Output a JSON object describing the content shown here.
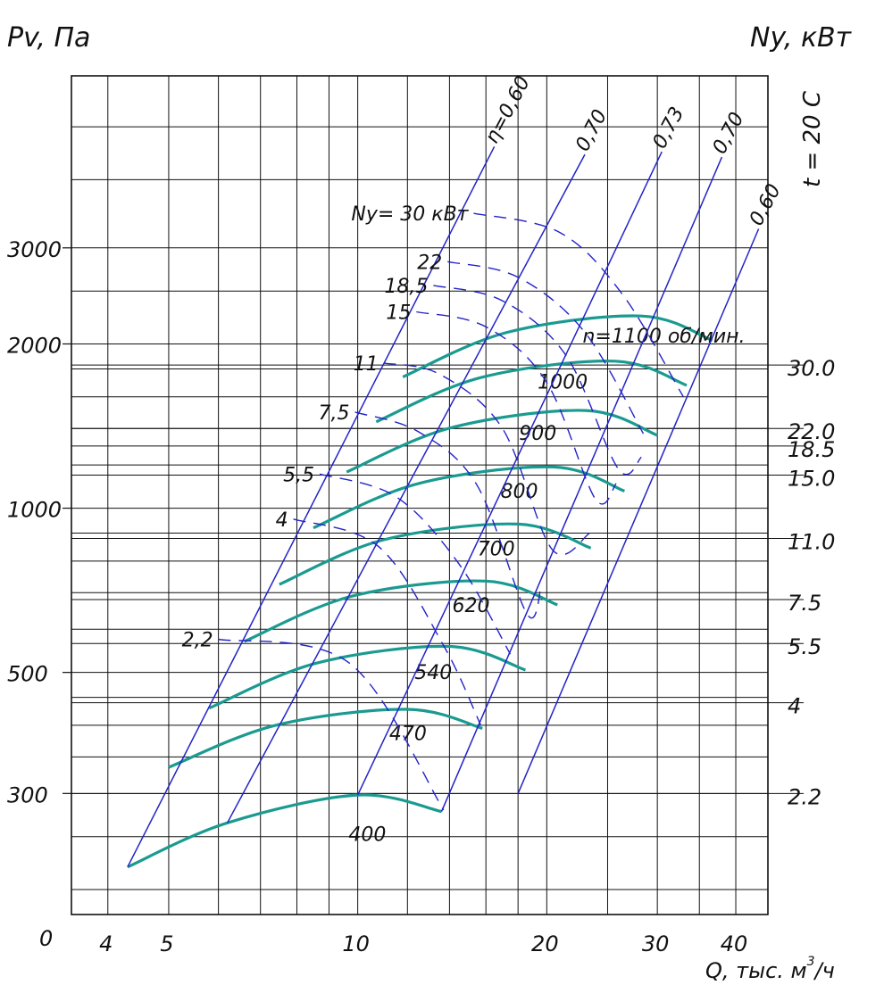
{
  "labels": {
    "y_left_title": "Pv, Па",
    "y_right_title": "Ny, кВт",
    "temperature": "t = 20 С",
    "x_title": "Q, тыс. м³/ч",
    "x_title_main": "Q, тыс. м",
    "x_title_sup": "3",
    "x_title_tail": "/ч",
    "origin": "0",
    "speed_prefix_note": "n=1100 об/мин.",
    "power_prefix_note": "Ny= 30 кВт"
  },
  "colors": {
    "grid": "#111111",
    "efficiency_lines": "#2323c8",
    "power_lines": "#2323c8",
    "speed_curves": "#1a9a90"
  },
  "chart_data": {
    "type": "line",
    "x_scale": "log",
    "y_scale": "log",
    "x_unit": "тыс. м³/ч",
    "y_unit": "Па",
    "xlim": [
      3.5,
      45
    ],
    "ylim": [
      180,
      6200
    ],
    "x_ticks": [
      "4",
      "5",
      "10",
      "20",
      "30",
      "40"
    ],
    "y_left_ticks": [
      "300",
      "500",
      "1000",
      "2000",
      "3000"
    ],
    "y_right_power_ticks": [
      {
        "label": "30.0",
        "pv": 1830
      },
      {
        "label": "22.0",
        "pv": 1400
      },
      {
        "label": "18.5",
        "pv": 1300
      },
      {
        "label": "15.0",
        "pv": 1150
      },
      {
        "label": "11.0",
        "pv": 880
      },
      {
        "label": "7.5",
        "pv": 680
      },
      {
        "label": "5.5",
        "pv": 565
      },
      {
        "label": "4",
        "pv": 440
      },
      {
        "label": "2.2",
        "pv": 300
      }
    ],
    "speed_curves": [
      {
        "name": "400",
        "points": [
          [
            4.3,
            220
          ],
          [
            6.2,
            265
          ],
          [
            10,
            298
          ],
          [
            13.6,
            278
          ]
        ]
      },
      {
        "name": "470",
        "points": [
          [
            5.0,
            335
          ],
          [
            7.4,
            400
          ],
          [
            12.0,
            428
          ],
          [
            15.8,
            395
          ]
        ]
      },
      {
        "name": "540",
        "points": [
          [
            5.8,
            430
          ],
          [
            8.6,
            520
          ],
          [
            14.0,
            558
          ],
          [
            18.5,
            505
          ]
        ]
      },
      {
        "name": "620",
        "points": [
          [
            6.6,
            570
          ],
          [
            9.8,
            690
          ],
          [
            16.0,
            735
          ],
          [
            20.8,
            665
          ]
        ]
      },
      {
        "name": "700",
        "points": [
          [
            7.5,
            725
          ],
          [
            11.0,
            875
          ],
          [
            18.0,
            935
          ],
          [
            23.5,
            845
          ]
        ]
      },
      {
        "name": "800",
        "points": [
          [
            8.5,
            920
          ],
          [
            12.5,
            1110
          ],
          [
            20.5,
            1190
          ],
          [
            26.6,
            1075
          ]
        ]
      },
      {
        "name": "900",
        "points": [
          [
            9.6,
            1165
          ],
          [
            14.1,
            1405
          ],
          [
            23.1,
            1510
          ],
          [
            30.0,
            1360
          ]
        ]
      },
      {
        "name": "1000",
        "points": [
          [
            10.7,
            1440
          ],
          [
            15.7,
            1735
          ],
          [
            25.7,
            1860
          ],
          [
            33.4,
            1680
          ]
        ]
      },
      {
        "name": "1100",
        "points": [
          [
            11.8,
            1740
          ],
          [
            17.3,
            2100
          ],
          [
            28.3,
            2250
          ],
          [
            36.7,
            2030
          ]
        ]
      }
    ],
    "efficiency_lines": [
      {
        "name": "η=0,60",
        "label": "η=0,60",
        "points": [
          [
            4.3,
            220
          ],
          [
            16.5,
            4600
          ]
        ]
      },
      {
        "name": "0,70",
        "label": "0,70",
        "points": [
          [
            6.2,
            265
          ],
          [
            23.0,
            4450
          ]
        ]
      },
      {
        "name": "0,73",
        "label": "0,73",
        "points": [
          [
            10,
            298
          ],
          [
            30.5,
            4500
          ]
        ]
      },
      {
        "name": "0,70",
        "label": "0,70",
        "points": [
          [
            13.6,
            278
          ],
          [
            38.0,
            4400
          ]
        ]
      },
      {
        "name": "0,60",
        "label": "0,60",
        "points": [
          [
            18.0,
            300
          ],
          [
            43.5,
            3250
          ]
        ]
      }
    ],
    "power_lines": [
      {
        "label": "2,2",
        "points": [
          [
            6.0,
            575
          ],
          [
            9.7,
            520
          ],
          [
            13.7,
            280
          ]
        ]
      },
      {
        "label": "4",
        "points": [
          [
            7.9,
            955
          ],
          [
            10.8,
            850
          ],
          [
            13.7,
            560
          ],
          [
            15.7,
            400
          ]
        ]
      },
      {
        "label": "5,5",
        "points": [
          [
            8.7,
            1155
          ],
          [
            11.5,
            1050
          ],
          [
            14.5,
            790
          ],
          [
            17.5,
            540
          ]
        ]
      },
      {
        "label": "7,5",
        "points": [
          [
            9.9,
            1500
          ],
          [
            12.5,
            1380
          ],
          [
            15.5,
            1100
          ],
          [
            18.6,
            640
          ],
          [
            19.6,
            720
          ]
        ]
      },
      {
        "label": "11",
        "points": [
          [
            11.0,
            1845
          ],
          [
            13.5,
            1760
          ],
          [
            17.0,
            1400
          ],
          [
            20.4,
            840
          ],
          [
            23.4,
            900
          ]
        ]
      },
      {
        "label": "15",
        "points": [
          [
            12.4,
            2290
          ],
          [
            16.0,
            2150
          ],
          [
            20.0,
            1700
          ],
          [
            23.9,
            1040
          ],
          [
            25.8,
            1110
          ]
        ]
      },
      {
        "label": "18,5",
        "points": [
          [
            13.2,
            2560
          ],
          [
            17.0,
            2400
          ],
          [
            21.5,
            1900
          ],
          [
            26.0,
            1180
          ],
          [
            28.3,
            1240
          ]
        ]
      },
      {
        "label": "22",
        "points": [
          [
            13.9,
            2830
          ],
          [
            18.0,
            2650
          ],
          [
            23.0,
            2100
          ],
          [
            28.5,
            1370
          ]
        ]
      },
      {
        "label": "Ny= 30 кВт",
        "points": [
          [
            15.3,
            3470
          ],
          [
            21.0,
            3200
          ],
          [
            26.5,
            2450
          ],
          [
            33.0,
            1600
          ]
        ]
      }
    ]
  }
}
